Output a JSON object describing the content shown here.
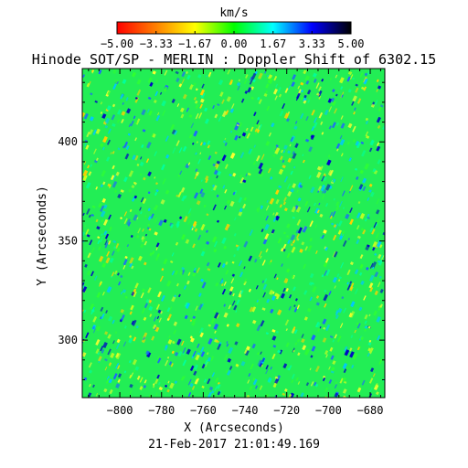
{
  "chart_data": {
    "type": "heatmap",
    "title": "Hinode SOT/SP - MERLIN : Doppler Shift of 6302.15",
    "colorbar": {
      "label": "km/s",
      "range": [
        -5.0,
        5.0
      ],
      "ticks": [
        "-5.00",
        "-3.33",
        "-1.67",
        "0.00",
        "1.67",
        "3.33",
        "5.00"
      ],
      "colormap": [
        "#ff0000",
        "#ff8000",
        "#ffff00",
        "#00ff00",
        "#00ffff",
        "#0000ff",
        "#000000"
      ]
    },
    "xlabel": "X (Arcseconds)",
    "ylabel": "Y (Arcseconds)",
    "xlim": [
      -818,
      -673
    ],
    "ylim": [
      271,
      437
    ],
    "xticks": [
      -800,
      -780,
      -760,
      -740,
      -720,
      -700,
      -680
    ],
    "yticks": [
      300,
      350,
      400
    ],
    "background_color": "#22ee55",
    "timestamp": "21-Feb-2017 21:01:49.169"
  }
}
